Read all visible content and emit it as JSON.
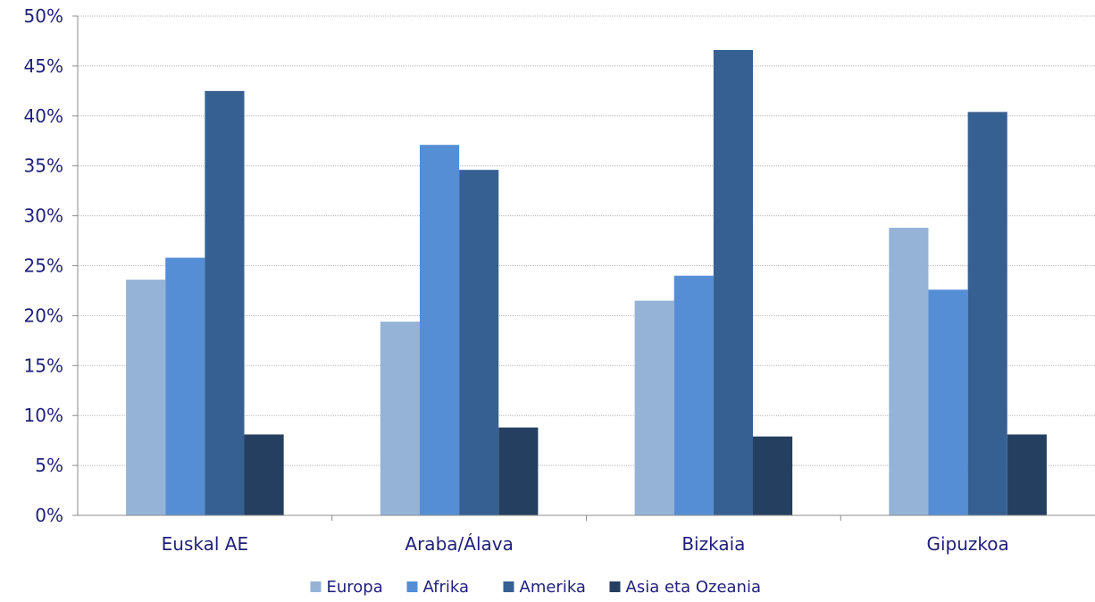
{
  "chart_data": {
    "type": "bar",
    "categories": [
      "Euskal AE",
      "Araba/Álava",
      "Bizkaia",
      "Gipuzkoa"
    ],
    "series": [
      {
        "name": "Europa",
        "color": "#95b3d7",
        "values": [
          23.6,
          19.4,
          21.5,
          28.8
        ]
      },
      {
        "name": "Afrika",
        "color": "#558ed5",
        "values": [
          25.8,
          37.1,
          24.0,
          22.6
        ]
      },
      {
        "name": "Amerika",
        "color": "#376092",
        "values": [
          42.5,
          34.6,
          46.6,
          40.4
        ]
      },
      {
        "name": "Asia eta Ozeania",
        "color": "#243f60",
        "values": [
          8.1,
          8.8,
          7.9,
          8.1
        ]
      }
    ],
    "ylim": [
      0,
      50
    ],
    "ytick_step": 5,
    "ytick_suffix": "%",
    "grid": true,
    "legend_position": "bottom",
    "title": "",
    "xlabel": "",
    "ylabel": ""
  }
}
